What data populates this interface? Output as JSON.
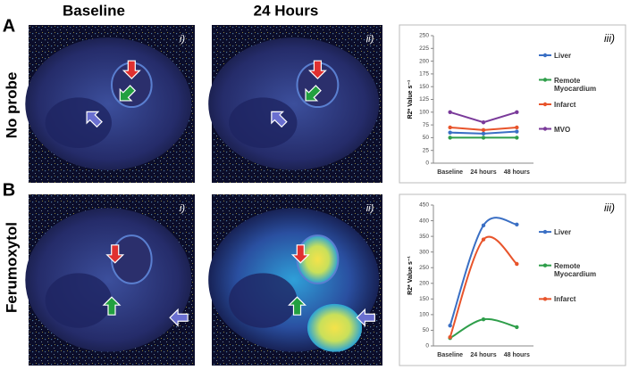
{
  "columns": [
    "Baseline",
    "24 Hours"
  ],
  "rows": [
    {
      "letter": "A",
      "label": "No probe",
      "panels": [
        "i)",
        "ii)"
      ]
    },
    {
      "letter": "B",
      "label": "Ferumoxytol",
      "panels": [
        "i)",
        "ii)"
      ]
    }
  ],
  "chart_data": [
    {
      "type": "line",
      "panel_label": "iii)",
      "y_label": "R2* Value s⁻¹",
      "smooth": false,
      "categories": [
        "Baseline",
        "24 hours",
        "48 hours"
      ],
      "ylim": [
        0,
        250
      ],
      "yticks": [
        0,
        25,
        50,
        75,
        100,
        125,
        150,
        175,
        200,
        225,
        250
      ],
      "series": [
        {
          "name": "Liver",
          "color": "#3a6fc4",
          "values": [
            60,
            58,
            62
          ]
        },
        {
          "name": "Remote Myocardium",
          "color": "#2e9e4a",
          "values": [
            50,
            50,
            50
          ]
        },
        {
          "name": "Infarct",
          "color": "#e8542b",
          "values": [
            70,
            65,
            70
          ]
        },
        {
          "name": "MVO",
          "color": "#7a3a9a",
          "values": [
            100,
            80,
            100
          ]
        }
      ]
    },
    {
      "type": "line",
      "panel_label": "iii)",
      "y_label": "R2* Value s⁻¹",
      "smooth": true,
      "categories": [
        "Baseline",
        "24 hours",
        "48 hours"
      ],
      "ylim": [
        0,
        450
      ],
      "yticks": [
        0,
        50,
        100,
        150,
        200,
        250,
        300,
        350,
        400,
        450
      ],
      "series": [
        {
          "name": "Liver",
          "color": "#3a6fc4",
          "values": [
            65,
            385,
            388
          ]
        },
        {
          "name": "Remote Myocardium",
          "color": "#2e9e4a",
          "values": [
            25,
            85,
            60
          ]
        },
        {
          "name": "Infarct",
          "color": "#e8542b",
          "values": [
            28,
            340,
            262
          ]
        }
      ]
    }
  ]
}
